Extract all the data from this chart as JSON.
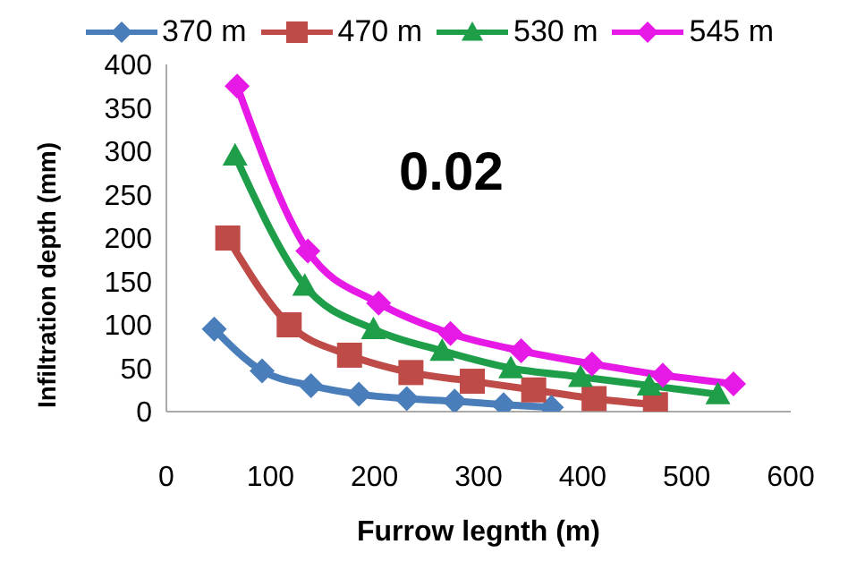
{
  "chart_data": {
    "type": "line",
    "xlabel": "Furrow legnth (m)",
    "ylabel": "Infiltration depth (mm)",
    "annotations": [
      "0.02"
    ],
    "xlim": [
      0,
      600
    ],
    "xticks": [
      0,
      100,
      200,
      300,
      400,
      500,
      600
    ],
    "ylim": [
      0,
      400
    ],
    "yticks": [
      0,
      50,
      100,
      150,
      200,
      250,
      300,
      350,
      400
    ],
    "grid": false,
    "legend": "top",
    "line_style": "solid",
    "series": [
      {
        "name": "370 m",
        "color": "#4a7ebb",
        "marker": "diamond",
        "x": [
          46,
          92,
          139,
          185,
          231,
          277,
          324,
          370
        ],
        "values": [
          95,
          47,
          30,
          20,
          15,
          12,
          8,
          5
        ]
      },
      {
        "name": "470 m",
        "color": "#be4b48",
        "marker": "square",
        "x": [
          59,
          118,
          176,
          235,
          294,
          353,
          411,
          470
        ],
        "values": [
          200,
          100,
          65,
          45,
          35,
          25,
          15,
          8
        ]
      },
      {
        "name": "530 m",
        "color": "#1e9e48",
        "marker": "triangle",
        "x": [
          66,
          133,
          199,
          265,
          331,
          398,
          464,
          530
        ],
        "values": [
          295,
          145,
          95,
          70,
          50,
          40,
          30,
          20
        ]
      },
      {
        "name": "545 m",
        "color": "#e619e6",
        "marker": "diamond",
        "x": [
          68,
          136,
          204,
          273,
          341,
          409,
          477,
          545
        ],
        "values": [
          375,
          185,
          125,
          90,
          70,
          55,
          42,
          32
        ]
      }
    ]
  }
}
